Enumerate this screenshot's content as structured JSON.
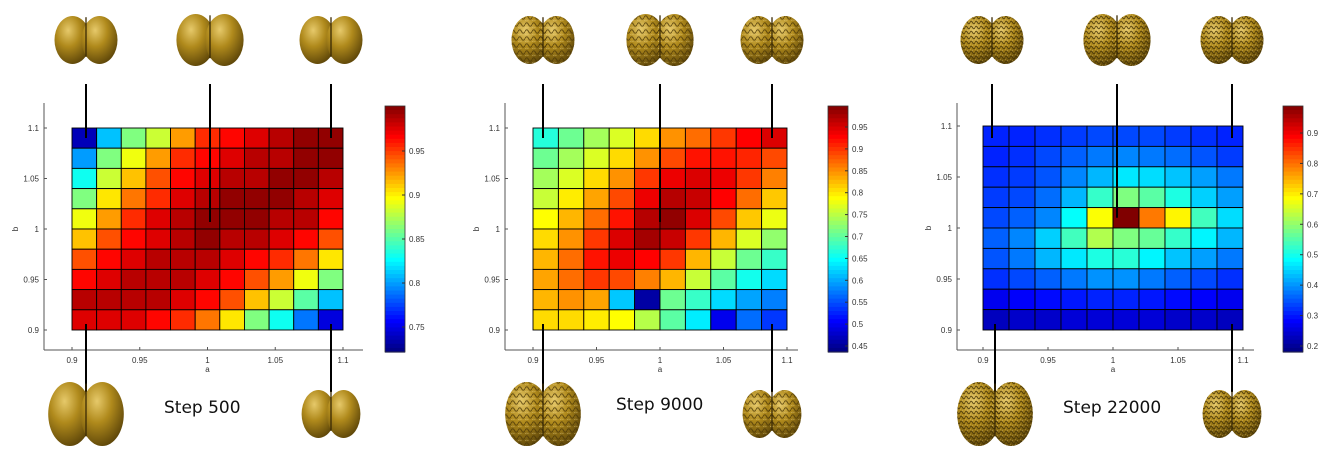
{
  "chart_data": [
    {
      "type": "heatmap",
      "title": "",
      "annotation": "Step 500",
      "xlabel": "a",
      "ylabel": "b",
      "x_ticks": [
        "0.9",
        "0.95",
        "1",
        "1.05",
        "1.1"
      ],
      "y_ticks": [
        "1.1",
        "1.05",
        "1",
        "0.95",
        "0.9"
      ],
      "xlim": [
        0.9,
        1.1
      ],
      "ylim": [
        0.9,
        1.1
      ],
      "grid_cols": 11,
      "grid_rows": 10,
      "colorbar": {
        "min": 0.725,
        "max": 0.995,
        "ticks": [
          "0.95",
          "0.9",
          "0.85",
          "0.8",
          "0.75"
        ]
      },
      "rows_top_to_bottom": [
        [
          0.74,
          0.81,
          0.86,
          0.88,
          0.92,
          0.95,
          0.96,
          0.97,
          0.98,
          0.99,
          0.99
        ],
        [
          0.8,
          0.86,
          0.89,
          0.92,
          0.95,
          0.96,
          0.97,
          0.98,
          0.98,
          0.99,
          0.99
        ],
        [
          0.83,
          0.88,
          0.91,
          0.94,
          0.96,
          0.97,
          0.98,
          0.98,
          0.99,
          0.99,
          0.98
        ],
        [
          0.86,
          0.9,
          0.93,
          0.95,
          0.97,
          0.98,
          0.99,
          0.99,
          0.99,
          0.98,
          0.97
        ],
        [
          0.89,
          0.92,
          0.95,
          0.97,
          0.98,
          0.99,
          0.99,
          0.99,
          0.98,
          0.98,
          0.96
        ],
        [
          0.91,
          0.94,
          0.96,
          0.97,
          0.98,
          0.99,
          0.98,
          0.98,
          0.97,
          0.96,
          0.94
        ],
        [
          0.94,
          0.96,
          0.97,
          0.98,
          0.98,
          0.98,
          0.97,
          0.96,
          0.95,
          0.93,
          0.9
        ],
        [
          0.96,
          0.97,
          0.98,
          0.98,
          0.98,
          0.97,
          0.96,
          0.94,
          0.92,
          0.89,
          0.86
        ],
        [
          0.98,
          0.98,
          0.98,
          0.98,
          0.97,
          0.96,
          0.94,
          0.91,
          0.88,
          0.85,
          0.81
        ],
        [
          0.97,
          0.97,
          0.97,
          0.96,
          0.95,
          0.93,
          0.9,
          0.86,
          0.83,
          0.79,
          0.75
        ]
      ]
    },
    {
      "type": "heatmap",
      "title": "",
      "annotation": "Step 9000",
      "xlabel": "a",
      "ylabel": "b",
      "x_ticks": [
        "0.9",
        "0.95",
        "1",
        "1.05",
        "1.1"
      ],
      "y_ticks": [
        "1.1",
        "1.05",
        "1",
        "0.95",
        "0.9"
      ],
      "xlim": [
        0.9,
        1.1
      ],
      "ylim": [
        0.9,
        1.1
      ],
      "grid_cols": 10,
      "grid_rows": 10,
      "colorbar": {
        "min": 0.43,
        "max": 0.99,
        "ticks": [
          "0.95",
          "0.9",
          "0.85",
          "0.8",
          "0.75",
          "0.7",
          "0.65",
          "0.6",
          "0.55",
          "0.5",
          "0.45"
        ]
      },
      "rows_top_to_bottom": [
        [
          0.66,
          0.7,
          0.73,
          0.76,
          0.8,
          0.84,
          0.86,
          0.89,
          0.92,
          0.94
        ],
        [
          0.7,
          0.73,
          0.76,
          0.8,
          0.84,
          0.88,
          0.91,
          0.91,
          0.9,
          0.88
        ],
        [
          0.73,
          0.76,
          0.8,
          0.84,
          0.89,
          0.93,
          0.94,
          0.93,
          0.89,
          0.85
        ],
        [
          0.75,
          0.79,
          0.83,
          0.88,
          0.93,
          0.96,
          0.95,
          0.92,
          0.86,
          0.81
        ],
        [
          0.78,
          0.82,
          0.86,
          0.91,
          0.96,
          0.98,
          0.94,
          0.88,
          0.81,
          0.77
        ],
        [
          0.8,
          0.84,
          0.89,
          0.94,
          0.97,
          0.95,
          0.89,
          0.82,
          0.76,
          0.72
        ],
        [
          0.82,
          0.86,
          0.91,
          0.93,
          0.92,
          0.89,
          0.82,
          0.75,
          0.7,
          0.67
        ],
        [
          0.83,
          0.86,
          0.89,
          0.88,
          0.85,
          0.82,
          0.75,
          0.69,
          0.65,
          0.62
        ],
        [
          0.82,
          0.84,
          0.83,
          0.61,
          0.45,
          0.7,
          0.67,
          0.62,
          0.59,
          0.57
        ],
        [
          0.8,
          0.8,
          0.79,
          0.78,
          0.74,
          0.69,
          0.63,
          0.49,
          0.56,
          0.53
        ]
      ]
    },
    {
      "type": "heatmap",
      "title": "",
      "annotation": "Step 22000",
      "xlabel": "a",
      "ylabel": "b",
      "x_ticks": [
        "0.9",
        "0.95",
        "1",
        "1.05",
        "1.1"
      ],
      "y_ticks": [
        "1.1",
        "1.05",
        "1",
        "0.95",
        "0.9"
      ],
      "xlim": [
        0.9,
        1.1
      ],
      "ylim": [
        0.9,
        1.1
      ],
      "grid_cols": 10,
      "grid_rows": 10,
      "colorbar": {
        "min": 0.17,
        "max": 0.99,
        "ticks": [
          "0.9",
          "0.8",
          "0.7",
          "0.6",
          "0.5",
          "0.4",
          "0.3",
          "0.2"
        ]
      },
      "rows_top_to_bottom": [
        [
          0.3,
          0.3,
          0.31,
          0.32,
          0.33,
          0.33,
          0.33,
          0.32,
          0.31,
          0.3
        ],
        [
          0.3,
          0.31,
          0.33,
          0.35,
          0.37,
          0.38,
          0.37,
          0.36,
          0.34,
          0.32
        ],
        [
          0.31,
          0.32,
          0.34,
          0.38,
          0.42,
          0.46,
          0.45,
          0.43,
          0.4,
          0.37
        ],
        [
          0.32,
          0.33,
          0.36,
          0.42,
          0.52,
          0.58,
          0.55,
          0.5,
          0.44,
          0.4
        ],
        [
          0.33,
          0.35,
          0.38,
          0.48,
          0.68,
          0.99,
          0.79,
          0.69,
          0.53,
          0.45
        ],
        [
          0.35,
          0.38,
          0.44,
          0.53,
          0.62,
          0.58,
          0.56,
          0.52,
          0.47,
          0.42
        ],
        [
          0.34,
          0.37,
          0.42,
          0.46,
          0.5,
          0.51,
          0.47,
          0.43,
          0.4,
          0.37
        ],
        [
          0.31,
          0.33,
          0.35,
          0.37,
          0.39,
          0.39,
          0.37,
          0.35,
          0.33,
          0.31
        ],
        [
          0.26,
          0.27,
          0.28,
          0.29,
          0.3,
          0.3,
          0.29,
          0.28,
          0.27,
          0.26
        ],
        [
          0.22,
          0.23,
          0.23,
          0.24,
          0.24,
          0.24,
          0.24,
          0.23,
          0.23,
          0.22
        ]
      ]
    }
  ]
}
